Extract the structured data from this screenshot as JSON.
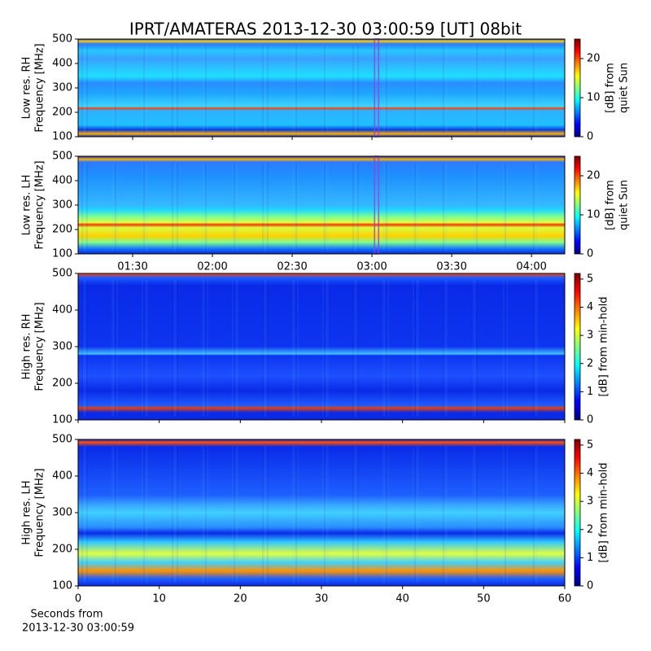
{
  "title": "IPRT/AMATERAS 2013-12-30 03:00:59 [UT]   08bit",
  "x_label": [
    "Seconds from",
    "2013-12-30 03:00:59"
  ],
  "chart_data": [
    {
      "type": "spectrogram",
      "ylabel": [
        "Low res. RH",
        "Frequency [MHz]"
      ],
      "ylim": [
        100,
        500
      ],
      "yticks": [
        100,
        200,
        300,
        400,
        500
      ],
      "xlim": [
        "01:09:30",
        "04:12:30"
      ],
      "highlight": [
        "03:00:59",
        "03:01:59"
      ],
      "highlight_color": "#9b3fd6",
      "colormap": "jet",
      "clim": [
        0,
        25
      ],
      "cticks": [
        0,
        10,
        20
      ],
      "colorbar_label": [
        "[dB] from",
        "quiet Sun"
      ]
    },
    {
      "type": "spectrogram",
      "ylabel": [
        "Low res. LH",
        "Frequency [MHz]"
      ],
      "ylim": [
        100,
        500
      ],
      "yticks": [
        100,
        200,
        300,
        400,
        500
      ],
      "xlim": [
        "01:09:30",
        "04:12:30"
      ],
      "xticks": [
        "01:30",
        "02:00",
        "02:30",
        "03:00",
        "03:30",
        "04:00"
      ],
      "highlight": [
        "03:00:59",
        "03:01:59"
      ],
      "highlight_color": "#9b3fd6",
      "colormap": "jet",
      "clim": [
        0,
        25
      ],
      "cticks": [
        0,
        10,
        20
      ],
      "colorbar_label": [
        "[dB] from",
        "quiet Sun"
      ]
    },
    {
      "type": "spectrogram",
      "ylabel": [
        "High res. RH",
        "Frequency [MHz]"
      ],
      "ylim": [
        100,
        500
      ],
      "yticks": [
        100,
        200,
        300,
        400,
        500
      ],
      "xlim": [
        0,
        60
      ],
      "colormap": "jet",
      "clim": [
        0,
        5.2
      ],
      "cticks": [
        0,
        1,
        2,
        3,
        4,
        5
      ],
      "colorbar_label": [
        "[dB] from min-hold"
      ]
    },
    {
      "type": "spectrogram",
      "ylabel": [
        "High res. LH",
        "Frequency [MHz]"
      ],
      "ylim": [
        100,
        500
      ],
      "yticks": [
        100,
        200,
        300,
        400,
        500
      ],
      "xlim": [
        0,
        60
      ],
      "xticks": [
        0,
        10,
        20,
        30,
        40,
        50,
        60
      ],
      "colormap": "jet",
      "clim": [
        0,
        5.2
      ],
      "cticks": [
        0,
        1,
        2,
        3,
        4,
        5
      ],
      "colorbar_label": [
        "[dB] from min-hold"
      ]
    }
  ]
}
